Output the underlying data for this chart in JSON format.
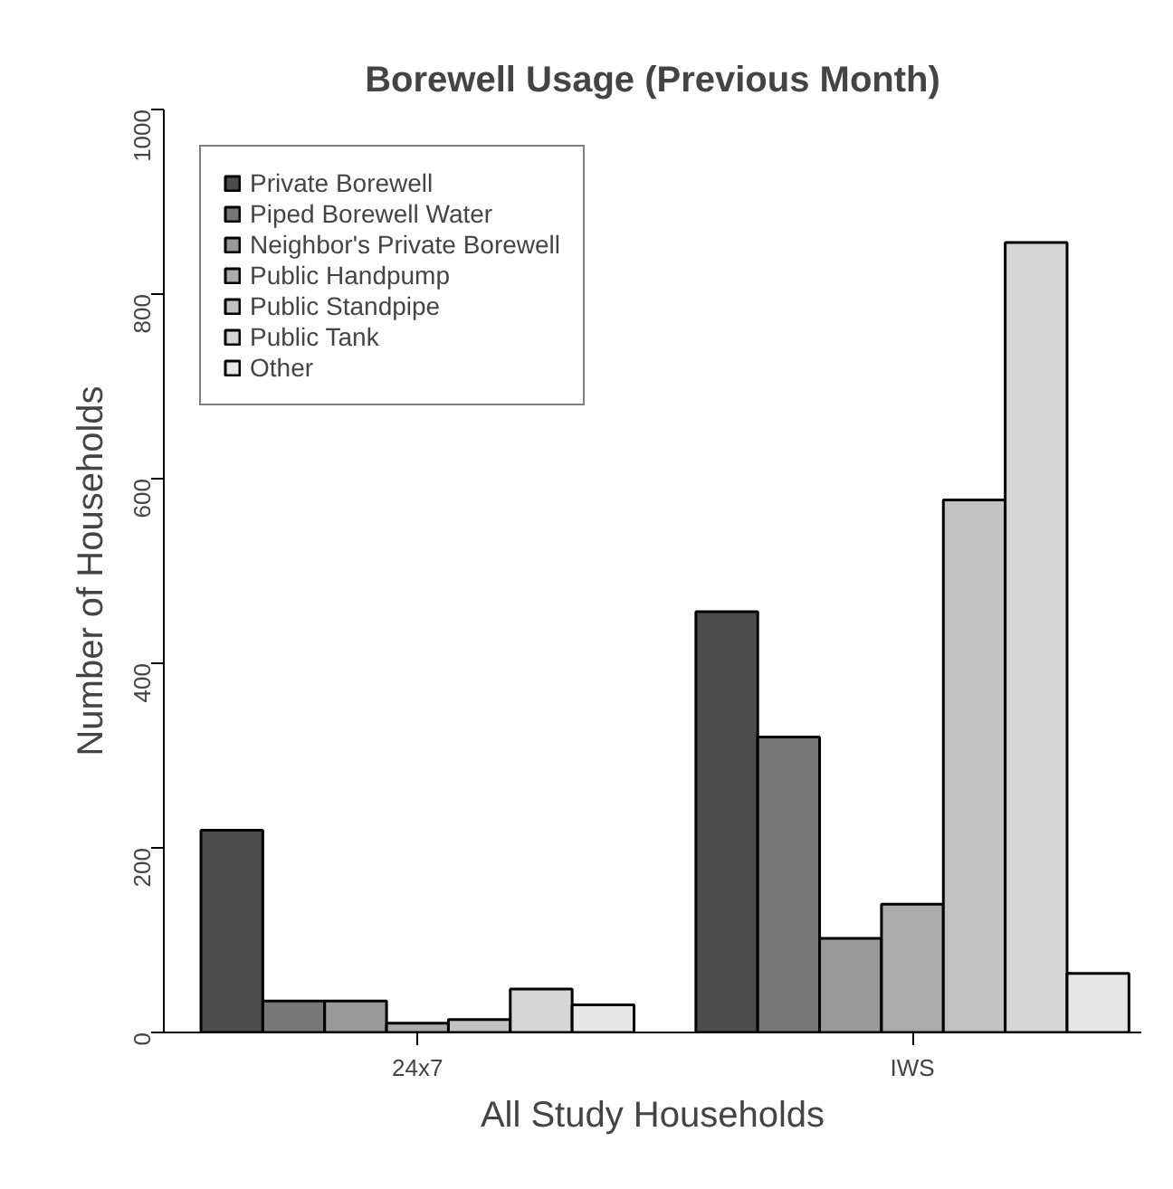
{
  "chart_data": {
    "type": "bar",
    "title": "Borewell Usage (Previous Month)",
    "xlabel": "All Study Households",
    "ylabel": "Number of Households",
    "categories": [
      "24x7",
      "IWS"
    ],
    "series": [
      {
        "name": "Private Borewell",
        "color": "#4d4d4d",
        "values": [
          219,
          456
        ]
      },
      {
        "name": "Piped Borewell Water",
        "color": "#787878",
        "values": [
          34,
          320
        ]
      },
      {
        "name": "Neighbor's Private Borewell",
        "color": "#999999",
        "values": [
          34,
          102
        ]
      },
      {
        "name": "Public Handpump",
        "color": "#ababab",
        "values": [
          10,
          139
        ]
      },
      {
        "name": "Public Standpipe",
        "color": "#c2c2c2",
        "values": [
          14,
          577
        ]
      },
      {
        "name": "Public Tank",
        "color": "#d6d6d6",
        "values": [
          47,
          856
        ]
      },
      {
        "name": "Other",
        "color": "#e6e6e6",
        "values": [
          30,
          64
        ]
      }
    ],
    "ylim": [
      0,
      1000
    ],
    "yticks": [
      0,
      200,
      400,
      600,
      800,
      1000
    ],
    "grid": false,
    "legend": "top left"
  }
}
